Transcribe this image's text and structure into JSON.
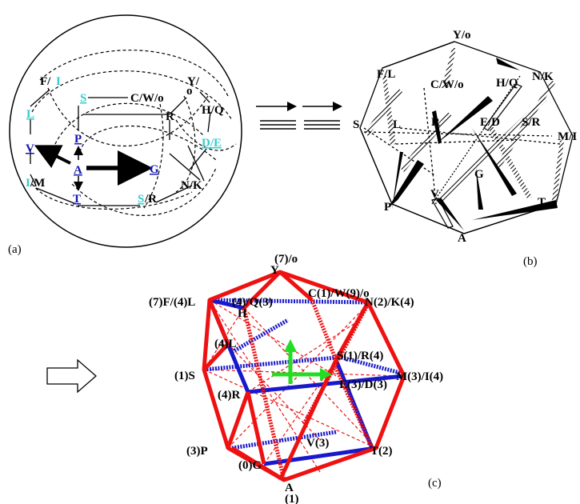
{
  "panel_a": {
    "caption": "(a)",
    "labels": {
      "F": "F/",
      "I1": "I",
      "S": "S",
      "CWo": "C/W/o",
      "Y": "Y/",
      "o": "o",
      "HQ": "H/Q",
      "L": "L",
      "P": "P",
      "R": "R",
      "DE": "D/E",
      "V": "V",
      "A": "A",
      "G": "G",
      "I2": "I",
      "M": "/M",
      "T": "T",
      "S2": "S",
      "R2": "/R",
      "NK": "N/K"
    }
  },
  "panel_b": {
    "caption": "(b)",
    "labels": {
      "Y": "Y/o",
      "F": "F/L",
      "C": "C/W/o",
      "H": "H/Q",
      "N": "N/K",
      "M": "M/I",
      "S": "S",
      "L": "L",
      "R": "R",
      "E": "E/D",
      "SR": "S/R",
      "V": "V",
      "G": "G",
      "P": "P",
      "T": "T",
      "A": "A"
    }
  },
  "panel_c": {
    "caption": "(c)",
    "labels": {
      "Y7": "(7)/o",
      "Y": "Y",
      "F": "(7)F/(4)L",
      "H4": "(4)/Q(3)",
      "H": "H",
      "C": "C(1)/W(9)/o",
      "N": "N(2)/K(4)",
      "L": "(4)L",
      "S": "(1)S",
      "SR": "S(1)/R(4)",
      "M": "M(3)/I(4)",
      "R": "(4)R",
      "E": "E(3)/D(3)",
      "V": "V(3)",
      "P": "(3)P",
      "T": "T(2)",
      "G": "(0)G",
      "A": "A",
      "A1": "(1)"
    }
  },
  "colors": {
    "red": "#ee1111",
    "blue": "#1818cc",
    "green": "#22dd22",
    "cyan": "#33cccc",
    "navy": "#1515b0"
  }
}
